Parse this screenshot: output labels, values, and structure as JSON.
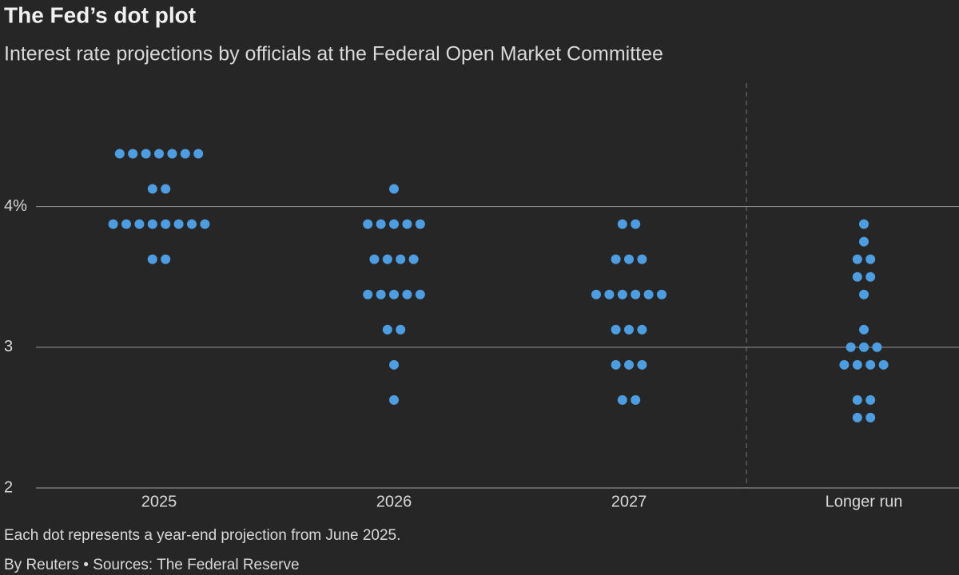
{
  "chart_data": {
    "type": "dot",
    "title": "The Fed’s dot plot",
    "subtitle": "Interest rate projections by officials at the Federal Open Market Committee",
    "note": "Each dot represents a year-end projection from June 2025.",
    "source": "By Reuters • Sources: The Federal Reserve",
    "categories": [
      "2025",
      "2026",
      "2027",
      "Longer run"
    ],
    "values": [
      [
        4.375,
        4.375,
        4.375,
        4.375,
        4.375,
        4.375,
        4.375,
        4.125,
        4.125,
        3.875,
        3.875,
        3.875,
        3.875,
        3.875,
        3.875,
        3.875,
        3.875,
        3.625,
        3.625
      ],
      [
        4.125,
        3.875,
        3.875,
        3.875,
        3.875,
        3.875,
        3.625,
        3.625,
        3.625,
        3.625,
        3.375,
        3.375,
        3.375,
        3.375,
        3.375,
        3.125,
        3.125,
        2.875,
        2.625
      ],
      [
        3.875,
        3.875,
        3.625,
        3.625,
        3.625,
        3.375,
        3.375,
        3.375,
        3.375,
        3.375,
        3.375,
        3.125,
        3.125,
        3.125,
        2.875,
        2.875,
        2.875,
        2.625,
        2.625
      ],
      [
        3.875,
        3.75,
        3.625,
        3.625,
        3.5,
        3.5,
        3.375,
        3.125,
        3.0,
        3.0,
        3.0,
        2.875,
        2.875,
        2.875,
        2.875,
        2.625,
        2.625,
        2.5,
        2.5
      ]
    ],
    "color": "#4d9de0",
    "ylim": [
      2,
      4.9
    ],
    "yticks": [
      2,
      3,
      {
        "value": 4,
        "label": "4%"
      }
    ],
    "grid": true
  }
}
